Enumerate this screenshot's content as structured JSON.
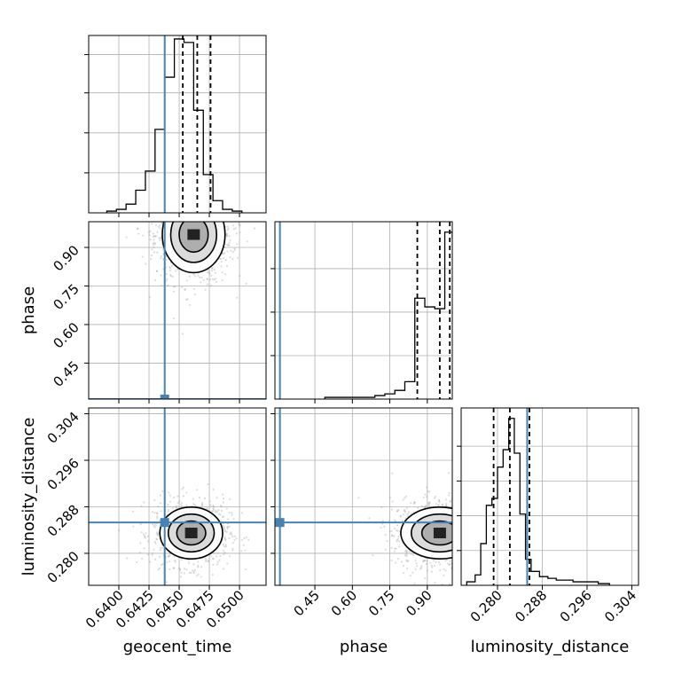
{
  "colors": {
    "truth": "#4682b4",
    "hist": "#000000",
    "grid": "#b0b0b0",
    "samples": "#9a9a9a"
  },
  "chart_data": {
    "type": "corner",
    "parameters": [
      "geocent_time",
      "phase",
      "luminosity_distance"
    ],
    "truths": {
      "geocent_time": 0.6438,
      "phase": 0.31,
      "luminosity_distance": 0.2853
    },
    "grid": true,
    "panels": [
      {
        "id": "hist-geocent_time",
        "type": "histogram",
        "x": "geocent_time",
        "xlim": [
          0.6375,
          0.6522
        ],
        "xticks": [
          0.64,
          0.6425,
          0.645,
          0.6475,
          0.65
        ],
        "yticks_unlabeled": [
          0.23,
          0.46,
          0.69,
          0.91
        ],
        "bin_edges": [
          0.639,
          0.6398,
          0.6406,
          0.6414,
          0.6422,
          0.643,
          0.6438,
          0.6446,
          0.6454,
          0.6462,
          0.647,
          0.6478,
          0.6486,
          0.6494,
          0.6502
        ],
        "counts": [
          0.01,
          0.02,
          0.05,
          0.13,
          0.24,
          0.48,
          0.78,
          1.0,
          0.98,
          0.59,
          0.22,
          0.07,
          0.02,
          0.01
        ],
        "quantiles": [
          0.6453,
          0.6465,
          0.6476
        ]
      },
      {
        "id": "hist-phase",
        "type": "histogram",
        "x": "phase",
        "xlim": [
          0.29,
          1.0
        ],
        "yticks_unlabeled": [
          0.25,
          0.5,
          0.75
        ],
        "bin_edges": [
          0.49,
          0.53,
          0.57,
          0.61,
          0.65,
          0.69,
          0.73,
          0.77,
          0.81,
          0.85,
          0.89,
          0.93,
          0.97,
          1.0
        ],
        "counts": [
          0.01,
          0.01,
          0.01,
          0.01,
          0.01,
          0.02,
          0.03,
          0.05,
          0.1,
          0.58,
          0.53,
          0.52,
          0.96,
          0.92
        ],
        "quantiles": [
          0.86,
          0.95,
          0.99
        ]
      },
      {
        "id": "hist-luminosity_distance",
        "type": "histogram",
        "x": "luminosity_distance",
        "xlim": [
          0.2735,
          0.3052
        ],
        "xticks": [
          0.28,
          0.288,
          0.296,
          0.304
        ],
        "yticks_unlabeled": [
          0.2,
          0.4,
          0.6,
          0.8
        ],
        "bin_edges": [
          0.2745,
          0.276,
          0.277,
          0.278,
          0.279,
          0.28,
          0.281,
          0.282,
          0.283,
          0.284,
          0.285,
          0.286,
          0.2875,
          0.289,
          0.2905,
          0.292,
          0.2935,
          0.295,
          0.2965,
          0.298,
          0.3
        ],
        "counts": [
          0.02,
          0.06,
          0.24,
          0.46,
          0.5,
          0.68,
          0.78,
          0.96,
          0.76,
          0.41,
          0.15,
          0.08,
          0.05,
          0.04,
          0.03,
          0.03,
          0.02,
          0.02,
          0.02,
          0.01
        ],
        "quantiles": [
          0.2793,
          0.2822,
          0.2857
        ]
      },
      {
        "id": "scatter-geocent_time-phase",
        "type": "2d-density",
        "x": "geocent_time",
        "y": "phase",
        "xlim": [
          0.6375,
          0.6522
        ],
        "ylim": [
          0.31,
          1.0
        ],
        "yticks": [
          0.45,
          0.6,
          0.75,
          0.9
        ],
        "center": [
          0.6462,
          0.95
        ],
        "spread": [
          0.001,
          0.06
        ]
      },
      {
        "id": "scatter-geocent_time-luminosity_distance",
        "type": "2d-density",
        "x": "geocent_time",
        "y": "luminosity_distance",
        "xlim": [
          0.6375,
          0.6522
        ],
        "ylim": [
          0.2745,
          0.305
        ],
        "xticks": [
          0.64,
          0.6425,
          0.645,
          0.6475,
          0.65
        ],
        "yticks": [
          0.28,
          0.288,
          0.296,
          0.304
        ],
        "center": [
          0.646,
          0.2835
        ],
        "spread": [
          0.001,
          0.0018
        ]
      },
      {
        "id": "scatter-phase-luminosity_distance",
        "type": "2d-density",
        "x": "phase",
        "y": "luminosity_distance",
        "xlim": [
          0.29,
          1.0
        ],
        "ylim": [
          0.2745,
          0.305
        ],
        "xticks": [
          0.45,
          0.6,
          0.75,
          0.9
        ],
        "center": [
          0.95,
          0.2835
        ],
        "spread": [
          0.06,
          0.0018
        ]
      }
    ]
  }
}
